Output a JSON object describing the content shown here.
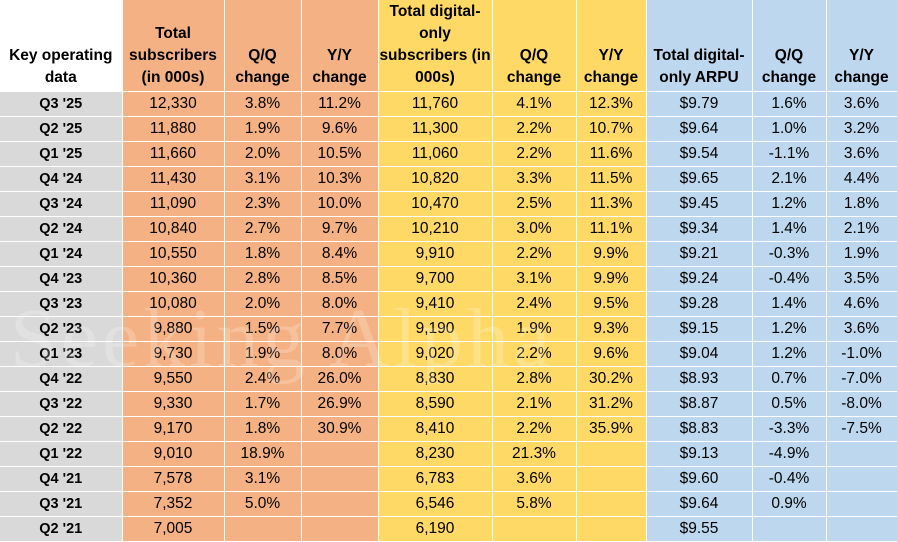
{
  "headers": {
    "key": "Key operating data",
    "total_subs": "Total subscribers (in 000s)",
    "total_qq": "Q/Q change",
    "total_yy": "Y/Y change",
    "digital_subs": "Total digital-only subscribers (in 000s)",
    "digital_qq": "Q/Q change",
    "digital_yy": "Y/Y change",
    "arpu": "Total digital-only ARPU",
    "arpu_qq": "Q/Q change",
    "arpu_yy": "Y/Y change"
  },
  "rows": [
    [
      "Q3 '25",
      "12,330",
      "3.8%",
      "11.2%",
      "11,760",
      "4.1%",
      "12.3%",
      "$9.79",
      "1.6%",
      "3.6%"
    ],
    [
      "Q2 '25",
      "11,880",
      "1.9%",
      "9.6%",
      "11,300",
      "2.2%",
      "10.7%",
      "$9.64",
      "1.0%",
      "3.2%"
    ],
    [
      "Q1 '25",
      "11,660",
      "2.0%",
      "10.5%",
      "11,060",
      "2.2%",
      "11.6%",
      "$9.54",
      "-1.1%",
      "3.6%"
    ],
    [
      "Q4 '24",
      "11,430",
      "3.1%",
      "10.3%",
      "10,820",
      "3.3%",
      "11.5%",
      "$9.65",
      "2.1%",
      "4.4%"
    ],
    [
      "Q3 '24",
      "11,090",
      "2.3%",
      "10.0%",
      "10,470",
      "2.5%",
      "11.3%",
      "$9.45",
      "1.2%",
      "1.8%"
    ],
    [
      "Q2 '24",
      "10,840",
      "2.7%",
      "9.7%",
      "10,210",
      "3.0%",
      "11.1%",
      "$9.34",
      "1.4%",
      "2.1%"
    ],
    [
      "Q1 '24",
      "10,550",
      "1.8%",
      "8.4%",
      "9,910",
      "2.2%",
      "9.9%",
      "$9.21",
      "-0.3%",
      "1.9%"
    ],
    [
      "Q4 '23",
      "10,360",
      "2.8%",
      "8.5%",
      "9,700",
      "3.1%",
      "9.9%",
      "$9.24",
      "-0.4%",
      "3.5%"
    ],
    [
      "Q3 '23",
      "10,080",
      "2.0%",
      "8.0%",
      "9,410",
      "2.4%",
      "9.5%",
      "$9.28",
      "1.4%",
      "4.6%"
    ],
    [
      "Q2 '23",
      "9,880",
      "1.5%",
      "7.7%",
      "9,190",
      "1.9%",
      "9.3%",
      "$9.15",
      "1.2%",
      "3.6%"
    ],
    [
      "Q1 '23",
      "9,730",
      "1.9%",
      "8.0%",
      "9,020",
      "2.2%",
      "9.6%",
      "$9.04",
      "1.2%",
      "-1.0%"
    ],
    [
      "Q4 '22",
      "9,550",
      "2.4%",
      "26.0%",
      "8,830",
      "2.8%",
      "30.2%",
      "$8.93",
      "0.7%",
      "-7.0%"
    ],
    [
      "Q3 '22",
      "9,330",
      "1.7%",
      "26.9%",
      "8,590",
      "2.1%",
      "31.2%",
      "$8.87",
      "0.5%",
      "-8.0%"
    ],
    [
      "Q2 '22",
      "9,170",
      "1.8%",
      "30.9%",
      "8,410",
      "2.2%",
      "35.9%",
      "$8.83",
      "-3.3%",
      "-7.5%"
    ],
    [
      "Q1 '22",
      "9,010",
      "18.9%",
      "",
      "8,230",
      "21.3%",
      "",
      "$9.13",
      "-4.9%",
      ""
    ],
    [
      "Q4 '21",
      "7,578",
      "3.1%",
      "",
      "6,783",
      "3.6%",
      "",
      "$9.60",
      "-0.4%",
      ""
    ],
    [
      "Q3 '21",
      "7,352",
      "5.0%",
      "",
      "6,546",
      "5.8%",
      "",
      "$9.64",
      "0.9%",
      ""
    ],
    [
      "Q2 '21",
      "7,005",
      "",
      "",
      "6,190",
      "",
      "",
      "$9.55",
      "",
      ""
    ]
  ],
  "watermark": "Seeking Alpha",
  "colors": {
    "total": "#f4b183",
    "digital": "#ffd966",
    "arpu": "#bdd7ee",
    "label": "#d9d9d9"
  }
}
